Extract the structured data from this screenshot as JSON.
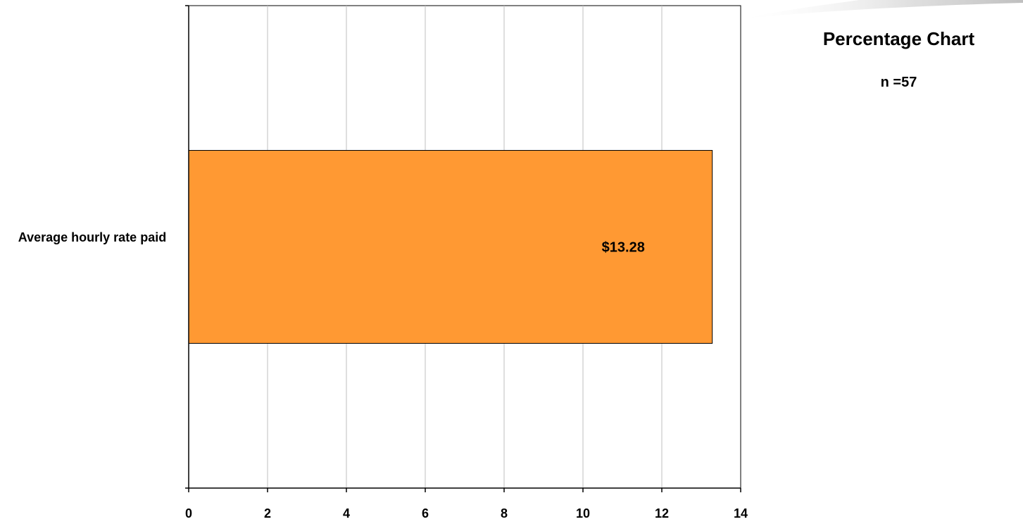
{
  "header": {
    "title": "Percentage Chart",
    "sample_size": "n =57"
  },
  "colors": {
    "bar_fill": "#FF9933",
    "bar_stroke": "#000000",
    "gridline": "#BFBFBF",
    "axis": "#000000"
  },
  "chart_data": {
    "type": "bar",
    "orientation": "horizontal",
    "categories": [
      "Average hourly rate paid"
    ],
    "values": [
      13.28
    ],
    "data_labels": [
      "$13.28"
    ],
    "xlim": [
      0,
      14
    ],
    "x_ticks": [
      0,
      2,
      4,
      6,
      8,
      10,
      12,
      14
    ],
    "xlabel": "",
    "ylabel": "",
    "grid": "vertical",
    "legend": "none"
  }
}
